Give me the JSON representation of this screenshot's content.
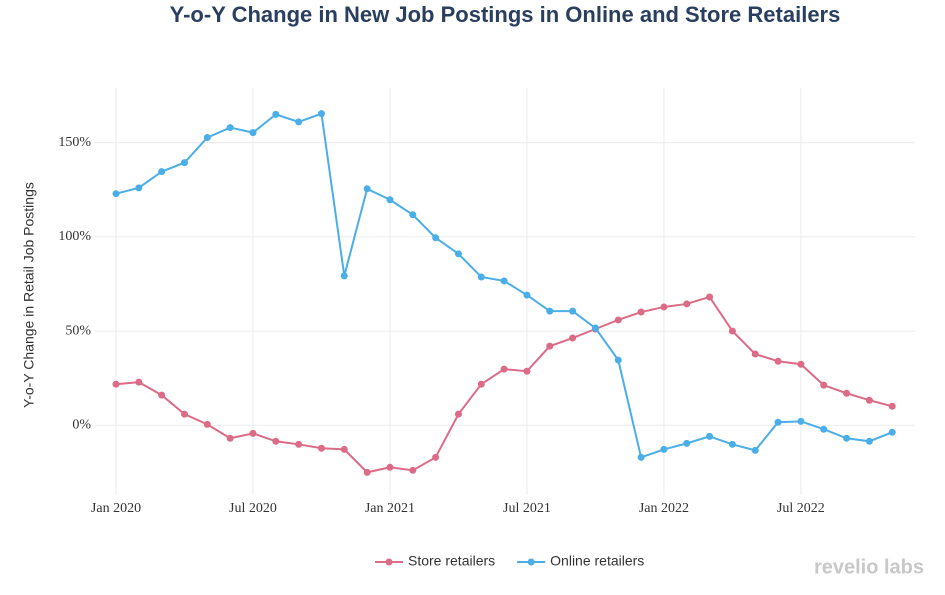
{
  "chart_data": {
    "type": "line",
    "title": "Y-o-Y Change in New Job Postings in Online and Store Retailers",
    "y_label": "Y-o-Y Change in Retail Job Postings",
    "watermark": "revelio labs",
    "x": [
      "2020-01",
      "2020-02",
      "2020-03",
      "2020-04",
      "2020-05",
      "2020-06",
      "2020-07",
      "2020-08",
      "2020-09",
      "2020-10",
      "2020-11",
      "2020-12",
      "2021-01",
      "2021-02",
      "2021-03",
      "2021-04",
      "2021-05",
      "2021-06",
      "2021-07",
      "2021-08",
      "2021-09",
      "2021-10",
      "2021-11",
      "2021-12",
      "2022-01",
      "2022-02",
      "2022-03",
      "2022-04",
      "2022-05",
      "2022-06",
      "2022-07",
      "2022-08",
      "2022-09",
      "2022-10",
      "2022-11"
    ],
    "xticks": [
      {
        "value": "2020-01",
        "label": "Jan 2020"
      },
      {
        "value": "2020-07",
        "label": "Jul 2020"
      },
      {
        "value": "2021-01",
        "label": "Jan 2021"
      },
      {
        "value": "2021-07",
        "label": "Jul 2021"
      },
      {
        "value": "2022-01",
        "label": "Jan 2022"
      },
      {
        "value": "2022-07",
        "label": "Jul 2022"
      }
    ],
    "ylim": [
      -37,
      179
    ],
    "yticks": [
      {
        "value": 0,
        "label": "0%"
      },
      {
        "value": 50,
        "label": "50%"
      },
      {
        "value": 100,
        "label": "100%"
      },
      {
        "value": 150,
        "label": "150%"
      }
    ],
    "grid": true,
    "legend": "bottom",
    "series": [
      {
        "name": "Store retailers",
        "color": "#dc6b88",
        "values": [
          21.8,
          22.9,
          16,
          5.9,
          0.5,
          -6.9,
          -4.3,
          -8.5,
          -10.1,
          -12.2,
          -12.8,
          -25,
          -22.3,
          -23.9,
          -17,
          5.9,
          21.8,
          29.8,
          28.7,
          42,
          46.3,
          51.1,
          55.9,
          60.1,
          62.8,
          64.4,
          68.1,
          50,
          37.8,
          34,
          32.4,
          21.3,
          17,
          13.3,
          10.1
        ]
      },
      {
        "name": "Online retailers",
        "color": "#4aaee8",
        "values": [
          122.9,
          126,
          134.6,
          139.4,
          152.7,
          158,
          155.3,
          165,
          161,
          165.4,
          79.3,
          125.5,
          119.7,
          111.7,
          99.5,
          91,
          78.7,
          76.6,
          69.1,
          60.6,
          60.6,
          51.6,
          34.6,
          -17,
          -12.8,
          -9.6,
          -5.9,
          -10.1,
          -13.3,
          1.6,
          2.1,
          -2.1,
          -6.9,
          -8.5,
          -3.7
        ]
      }
    ]
  }
}
